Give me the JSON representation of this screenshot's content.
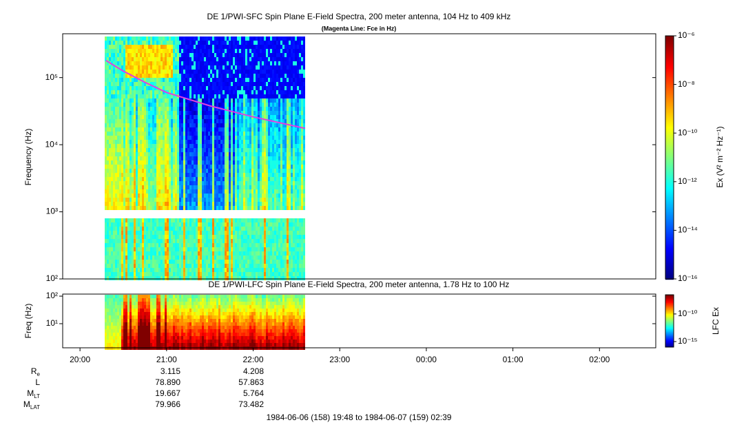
{
  "chart_data": [
    {
      "type": "spectrogram",
      "title": "DE 1/PWI-SFC  Spin Plane E-Field Spectra, 200 meter antenna, 104 Hz to 409 kHz",
      "subtitle": "(Magenta Line: Fce in Hz)",
      "y_label": "Frequency (Hz)",
      "log_y": true,
      "xlim": [
        19.8,
        26.65
      ],
      "ylim": [
        100,
        450000
      ],
      "yticks": [
        {
          "value": 100,
          "label": "10²"
        },
        {
          "value": 1000,
          "label": "10³"
        },
        {
          "value": 10000,
          "label": "10⁴"
        },
        {
          "value": 100000,
          "label": "10⁵"
        }
      ],
      "line": {
        "color": "#e040e0",
        "x": [
          20.3,
          20.5,
          20.75,
          21.0,
          21.5,
          22.0,
          22.6
        ],
        "values": [
          180000,
          125000,
          85000,
          60000,
          38000,
          26000,
          17500
        ]
      },
      "colorbar": {
        "label": "Ex (V² m⁻² Hz⁻¹)",
        "clim": [
          1e-16,
          1e-06
        ],
        "ticks": [
          {
            "value": 1e-06,
            "label": "10⁻⁶"
          },
          {
            "value": 1e-08,
            "label": "10⁻⁸"
          },
          {
            "value": 1e-10,
            "label": "10⁻¹⁰"
          },
          {
            "value": 1e-12,
            "label": "10⁻¹²"
          },
          {
            "value": 1e-14,
            "label": "10⁻¹⁴"
          },
          {
            "value": 1e-16,
            "label": "10⁻¹⁶"
          }
        ]
      }
    },
    {
      "type": "spectrogram",
      "title": "DE 1/PWI-LFC  Spin Plane E-Field Spectra, 200 meter antenna, 1.78 Hz to 100 Hz",
      "y_label": "Freq (Hz)",
      "log_y": true,
      "xlim": [
        19.8,
        26.65
      ],
      "ylim": [
        1.33,
        119
      ],
      "yticks": [
        {
          "value": 10,
          "label": "10¹"
        },
        {
          "value": 100,
          "label": "10²"
        }
      ],
      "xticks": [
        {
          "value": 20,
          "label": "20:00"
        },
        {
          "value": 21,
          "label": "21:00"
        },
        {
          "value": 22,
          "label": "22:00"
        },
        {
          "value": 23,
          "label": "23:00"
        },
        {
          "value": 24,
          "label": "00:00"
        },
        {
          "value": 25,
          "label": "01:00"
        },
        {
          "value": 26,
          "label": "02:00"
        }
      ],
      "colorbar": {
        "label": "LFC Ex",
        "clim": [
          1e-16,
          3e-07
        ],
        "ticks": [
          {
            "value": 1e-10,
            "label": "10⁻¹⁰"
          },
          {
            "value": 1e-15,
            "label": "10⁻¹⁵"
          }
        ]
      }
    }
  ],
  "ephemeris": {
    "rows": [
      {
        "label": "R",
        "sub": "e",
        "values": [
          "3.115",
          "4.208"
        ]
      },
      {
        "label": "L",
        "sub": "",
        "values": [
          "78.890",
          "57.863"
        ]
      },
      {
        "label": "M",
        "sub": "LT",
        "values": [
          "19.667",
          "5.764"
        ]
      },
      {
        "label": "M",
        "sub": "LAT",
        "values": [
          "79.966",
          "73.482"
        ]
      }
    ]
  },
  "footer": "1984-06-06 (158) 19:48 to 1984-06-07 (159) 02:39"
}
